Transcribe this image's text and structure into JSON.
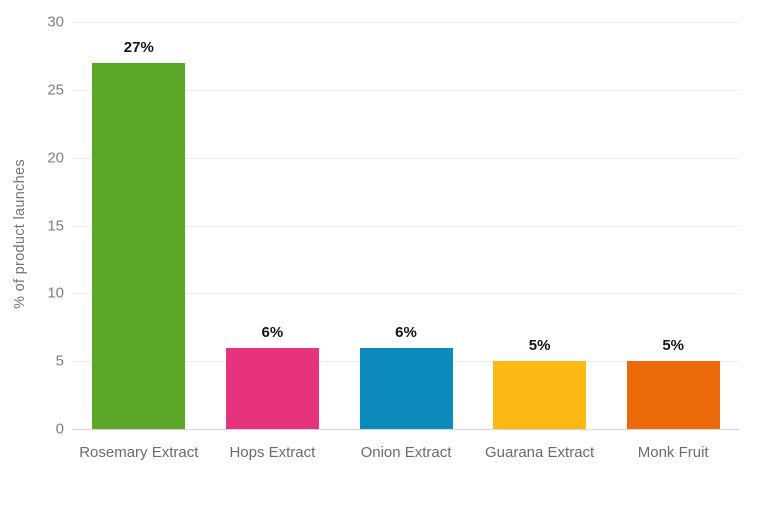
{
  "chart_data": {
    "type": "bar",
    "title": "",
    "xlabel": "",
    "ylabel": "% of product launches",
    "categories": [
      "Rosemary Extract",
      "Hops Extract",
      "Onion Extract",
      "Guarana Extract",
      "Monk Fruit"
    ],
    "values": [
      27,
      6,
      6,
      5,
      5
    ],
    "value_labels": [
      "27%",
      "6%",
      "6%",
      "5%",
      "5%"
    ],
    "bar_colors": [
      "#5ba829",
      "#e7337e",
      "#0d8abc",
      "#fcb813",
      "#ec6a0a"
    ],
    "ylim": [
      0,
      30
    ],
    "yticks": [
      30,
      25,
      20,
      15,
      10,
      5,
      0
    ],
    "grid": "horizontal",
    "legend": "none",
    "colors": {
      "background": "#ffffff",
      "gridline": "#ebebeb",
      "axis_line": "#d6d6d6",
      "tick_text": "#808080",
      "category_text": "#6b6b6b",
      "axis_title_text": "#757575",
      "value_label_text": "#141414"
    }
  }
}
